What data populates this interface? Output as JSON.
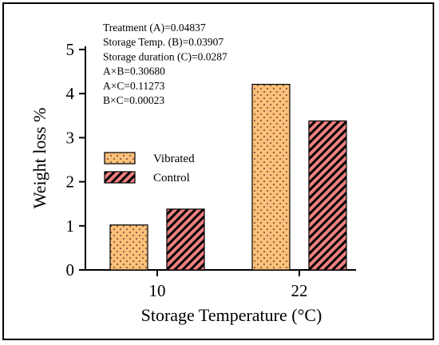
{
  "chart_data": {
    "type": "bar",
    "xlabel": "Storage Temperature (°C)",
    "ylabel": "Weight loss %",
    "categories": [
      "10",
      "22"
    ],
    "ylim": [
      0,
      5
    ],
    "yticks": [
      "0",
      "1",
      "2",
      "3",
      "4",
      "5"
    ],
    "series": [
      {
        "name": "Vibrated",
        "values": [
          1.02,
          4.21
        ],
        "fill": "#fdbf7a",
        "pattern": "dots"
      },
      {
        "name": "Control",
        "values": [
          1.38,
          3.38
        ],
        "fill": "#f08080",
        "pattern": "diagonal-stripes"
      }
    ],
    "legend_position": "left-middle",
    "annotations": [
      "Treatment (A)=0.04837",
      "Storage Temp. (B)=0.03907",
      "Storage duration (C)=0.0287",
      "A×B=0.30680",
      "A×C=0.11273",
      "B×C=0.00023"
    ],
    "grid": false
  }
}
